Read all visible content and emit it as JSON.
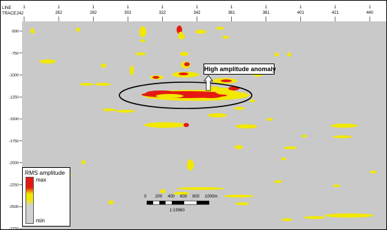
{
  "chart_data": {
    "type": "heatmap",
    "title": "",
    "header": {
      "line_label": "LINE",
      "trace_label": "TRACE",
      "trace_label_extra": "242"
    },
    "x_ticks": [
      {
        "line": "1",
        "trace": ""
      },
      {
        "line": "1",
        "trace": "262"
      },
      {
        "line": "1",
        "trace": "282"
      },
      {
        "line": "1",
        "trace": "302"
      },
      {
        "line": "1",
        "trace": "322"
      },
      {
        "line": "1",
        "trace": "342"
      },
      {
        "line": "1",
        "trace": "361"
      },
      {
        "line": "1",
        "trace": "381"
      },
      {
        "line": "1",
        "trace": "401"
      },
      {
        "line": "1",
        "trace": "421"
      },
      {
        "line": "1",
        "trace": "440"
      }
    ],
    "y_ticks": [
      "-500",
      "-750",
      "-1000",
      "-1250",
      "-1500",
      "-1750",
      "-2000",
      "-2250",
      "-2500",
      "-2750"
    ],
    "ylim": [
      -2750,
      -500
    ],
    "colors": {
      "background": "#c9c9c9",
      "max": "#e41a12",
      "mid": "#f2e800",
      "min": "#d2d2d2"
    },
    "legend": {
      "title": "RMS amplitude",
      "max_label": "max",
      "min_label": "min",
      "placement": "bottom-left"
    },
    "annotation": {
      "text": "High amplitude anomaly"
    },
    "scale": {
      "ticks": [
        "0",
        "200",
        "400",
        "600",
        "800",
        "1000m"
      ],
      "ratio": "1:19960"
    }
  }
}
